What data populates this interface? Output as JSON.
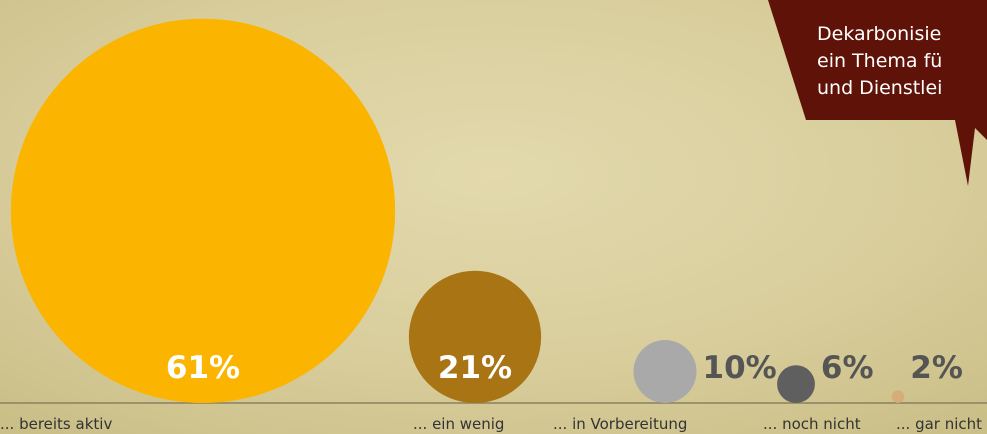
{
  "chart_data": {
    "type": "bubble",
    "categories": [
      "... bereits aktiv",
      "... ein wenig",
      "... in Vorbereitung",
      "... noch nicht",
      "... gar nicht"
    ],
    "values": [
      61,
      21,
      10,
      6,
      2
    ],
    "value_labels": [
      "61%",
      "21%",
      "10%",
      "6%",
      "2%"
    ],
    "colors": [
      "#fbb400",
      "#a87414",
      "#a9a9a9",
      "#5f5f5f",
      "#d6ad78"
    ],
    "annotation": [
      "Dekarbonisie",
      "ein Thema fü",
      "und Dienstlei"
    ]
  }
}
